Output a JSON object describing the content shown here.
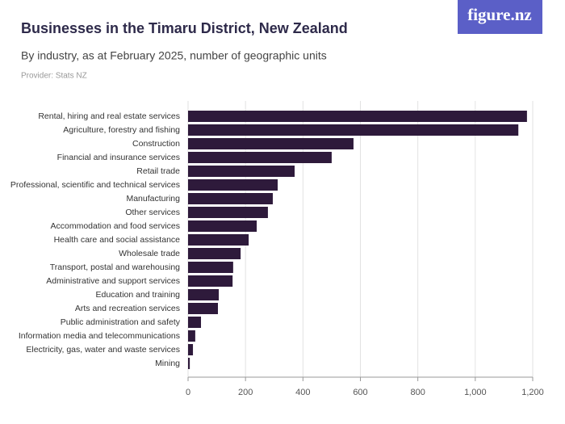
{
  "logo": "figure.nz",
  "chart_data": {
    "type": "bar",
    "orientation": "horizontal",
    "title": "Businesses in the Timaru District, New Zealand",
    "subtitle": "By industry, as at February 2025, number of geographic units",
    "source": "Provider: Stats NZ",
    "categories": [
      "Rental, hiring and real estate services",
      "Agriculture, forestry and fishing",
      "Construction",
      "Financial and insurance services",
      "Retail trade",
      "Professional, scientific and technical services",
      "Manufacturing",
      "Other services",
      "Accommodation and food services",
      "Health care and social assistance",
      "Wholesale trade",
      "Transport, postal and warehousing",
      "Administrative and support services",
      "Education and training",
      "Arts and recreation services",
      "Public administration and safety",
      "Information media and telecommunications",
      "Electricity, gas, water and waste services",
      "Mining"
    ],
    "values": [
      1180,
      1150,
      576,
      500,
      371,
      312,
      295,
      278,
      239,
      211,
      183,
      157,
      155,
      107,
      104,
      45,
      25,
      17,
      6
    ],
    "color": "#2e1a3b",
    "xlim": [
      0,
      1200
    ],
    "xticks": [
      0,
      200,
      400,
      600,
      800,
      {
        "value": 1000,
        "label": "1,000"
      },
      {
        "value": 1200,
        "label": "1,200"
      }
    ],
    "grid": true
  }
}
